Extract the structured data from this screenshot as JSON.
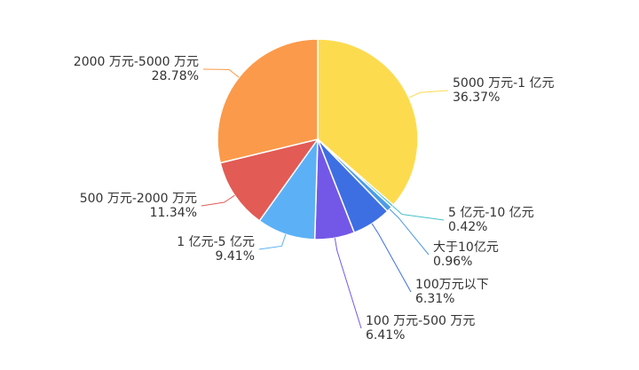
{
  "chart_data": {
    "type": "pie",
    "categories": [
      "5000 万元-1 亿元",
      "5 亿元-10 亿元",
      "大于10亿元",
      "100万元以下",
      "100 万元-500 万元",
      "1 亿元-5 亿元",
      "500 万元-2000 万元",
      "2000 万元-5000 万元"
    ],
    "values": [
      36.37,
      0.42,
      0.96,
      6.31,
      6.41,
      9.41,
      11.34,
      28.78
    ],
    "value_labels": [
      "36.37%",
      "0.42%",
      "0.96%",
      "6.31%",
      "6.41%",
      "9.41%",
      "11.34%",
      "28.78%"
    ],
    "colors": [
      "#fddb4f",
      "#46c2c8",
      "#4b9be8",
      "#3d6fe3",
      "#7358e8",
      "#5cb1f6",
      "#e25b55",
      "#fb9a4a"
    ]
  }
}
